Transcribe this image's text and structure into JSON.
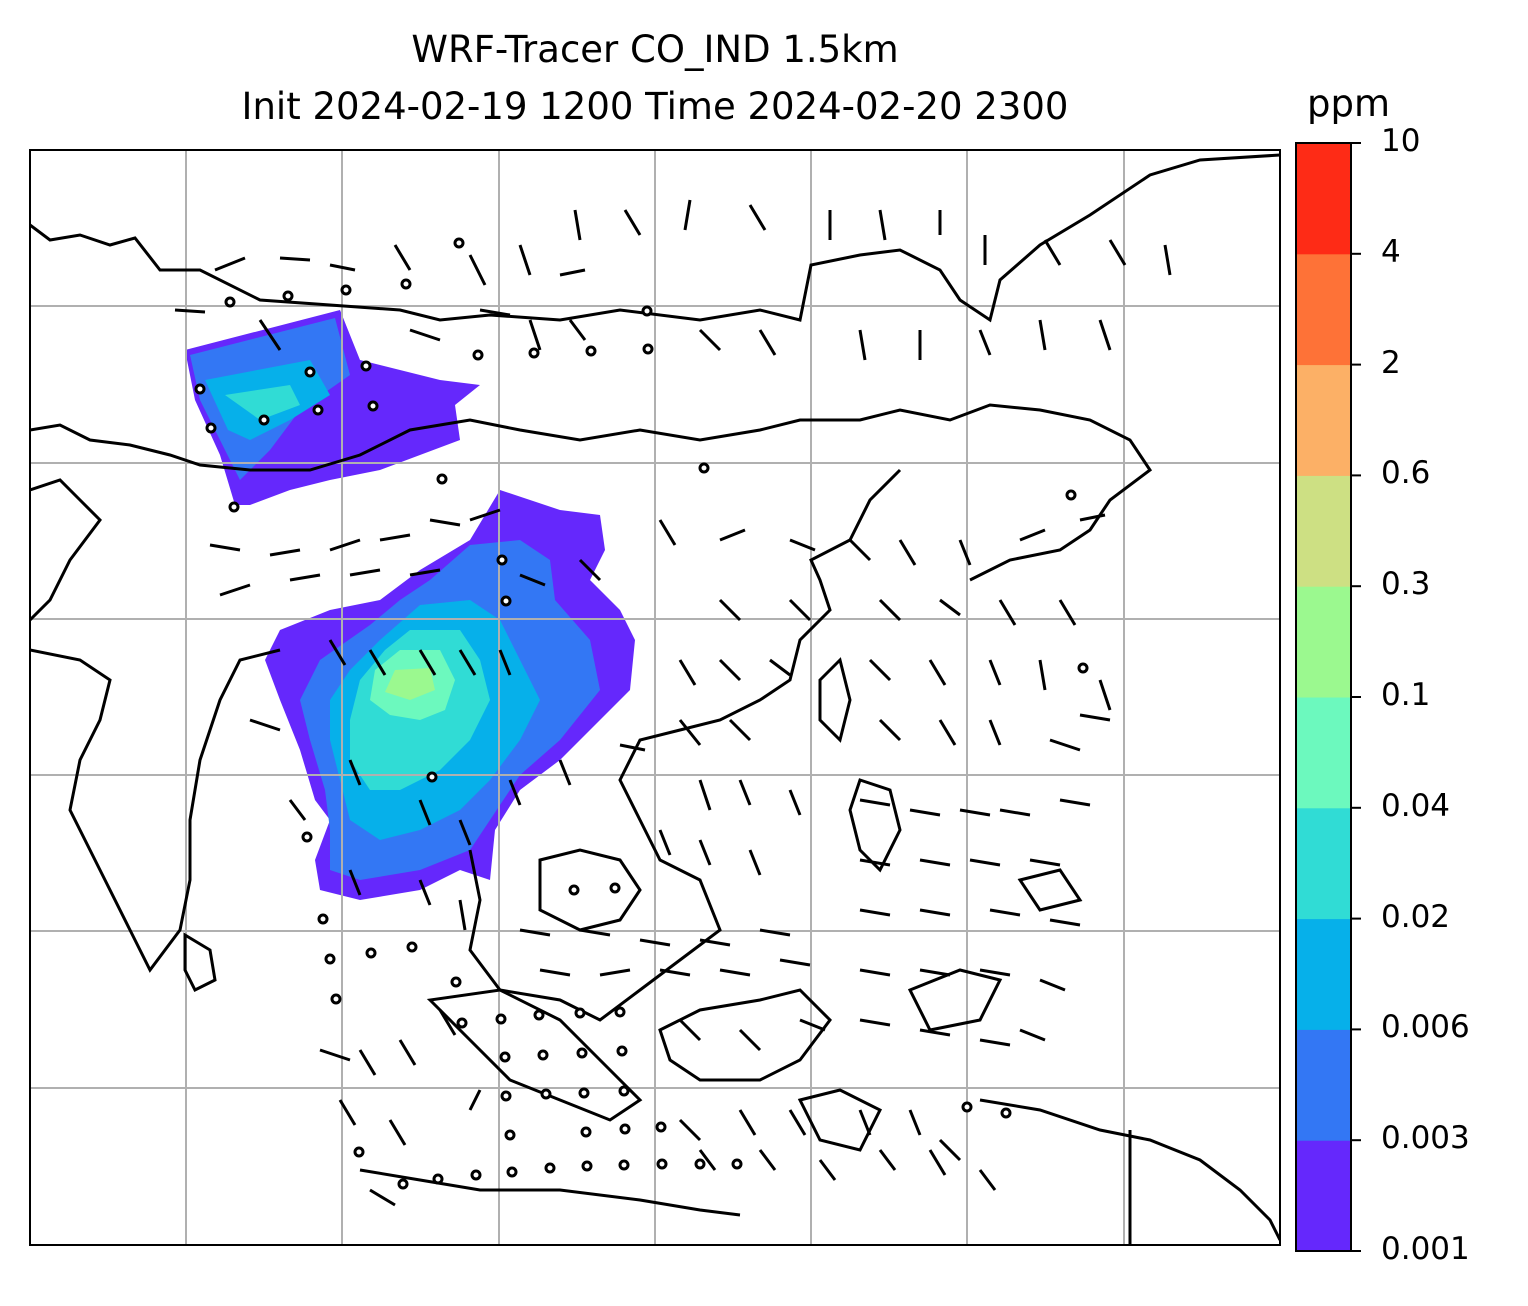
{
  "title": {
    "line1": "WRF-Tracer CO_IND 1.5km",
    "line2": "Init 2024-02-19 1200 Time 2024-02-20 2300"
  },
  "colorbar": {
    "unit": "ppm",
    "levels": [
      "0.001",
      "0.003",
      "0.006",
      "0.02",
      "0.04",
      "0.1",
      "0.3",
      "0.6",
      "2",
      "4",
      "10"
    ],
    "colors": [
      "#6528fc",
      "#3377f4",
      "#06b0ea",
      "#30dcd5",
      "#6cf9be",
      "#9bf98f",
      "#cde083",
      "#fcb066",
      "#fe7237",
      "#fe2b16"
    ]
  },
  "map": {
    "gridlines": true,
    "variable": "CO_IND tracer concentration",
    "overlay": "wind barbs"
  }
}
